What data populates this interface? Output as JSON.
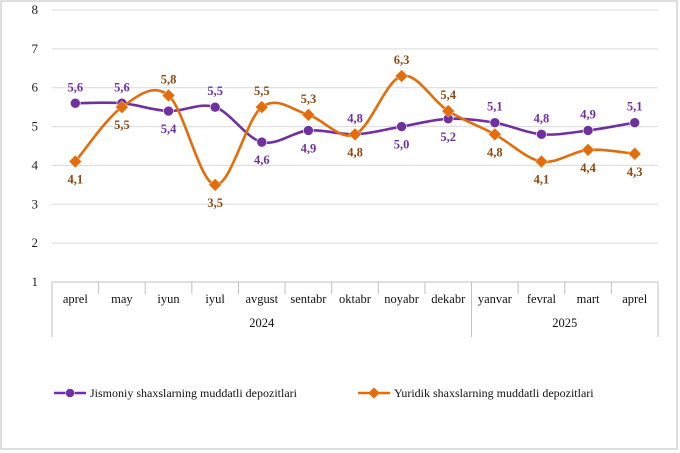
{
  "chart_data": {
    "type": "line",
    "title": "",
    "xlabel": "",
    "ylabel": "",
    "ylim": [
      1,
      8
    ],
    "yticks": [
      1,
      2,
      3,
      4,
      5,
      6,
      7,
      8
    ],
    "grid": true,
    "legend_position": "bottom",
    "categories": [
      "aprel",
      "may",
      "iyun",
      "iyul",
      "avgust",
      "sentabr",
      "oktabr",
      "noyabr",
      "dekabr",
      "yanvar",
      "fevral",
      "mart",
      "aprel"
    ],
    "year_groups": [
      {
        "label": "2024",
        "from": 0,
        "to": 8
      },
      {
        "label": "2025",
        "from": 9,
        "to": 12
      }
    ],
    "series": [
      {
        "name": "Jismoniy shaxslarning muddatli depozitlari",
        "color": "#7030A0",
        "marker": "circle",
        "values": [
          5.6,
          5.6,
          5.4,
          5.5,
          4.6,
          4.9,
          4.8,
          5.0,
          5.2,
          5.1,
          4.8,
          4.9,
          5.1
        ],
        "labels": [
          "5,6",
          "5,6",
          "5,4",
          "5,5",
          "4,6",
          "4,9",
          "4,8",
          "5,0",
          "5,2",
          "5,1",
          "4,8",
          "4,9",
          "5,1"
        ],
        "label_side": [
          "above",
          "above",
          "below",
          "above",
          "below",
          "below",
          "above",
          "below",
          "below",
          "above",
          "above",
          "above",
          "above"
        ]
      },
      {
        "name": "Yuridik shaxslarning muddatli depozitlari",
        "color": "#E46C0A",
        "label_color": "#8B4A10",
        "marker": "diamond",
        "values": [
          4.1,
          5.5,
          5.8,
          3.5,
          5.5,
          5.3,
          4.8,
          6.3,
          5.4,
          4.8,
          4.1,
          4.4,
          4.3
        ],
        "labels": [
          "4,1",
          "5,5",
          "5,8",
          "3,5",
          "5,5",
          "5,3",
          "4,8",
          "6,3",
          "5,4",
          "4,8",
          "4,1",
          "4,4",
          "4,3"
        ],
        "label_side": [
          "below",
          "below",
          "above",
          "below",
          "above",
          "above",
          "below",
          "above",
          "above",
          "below",
          "below",
          "below",
          "below"
        ]
      }
    ]
  }
}
